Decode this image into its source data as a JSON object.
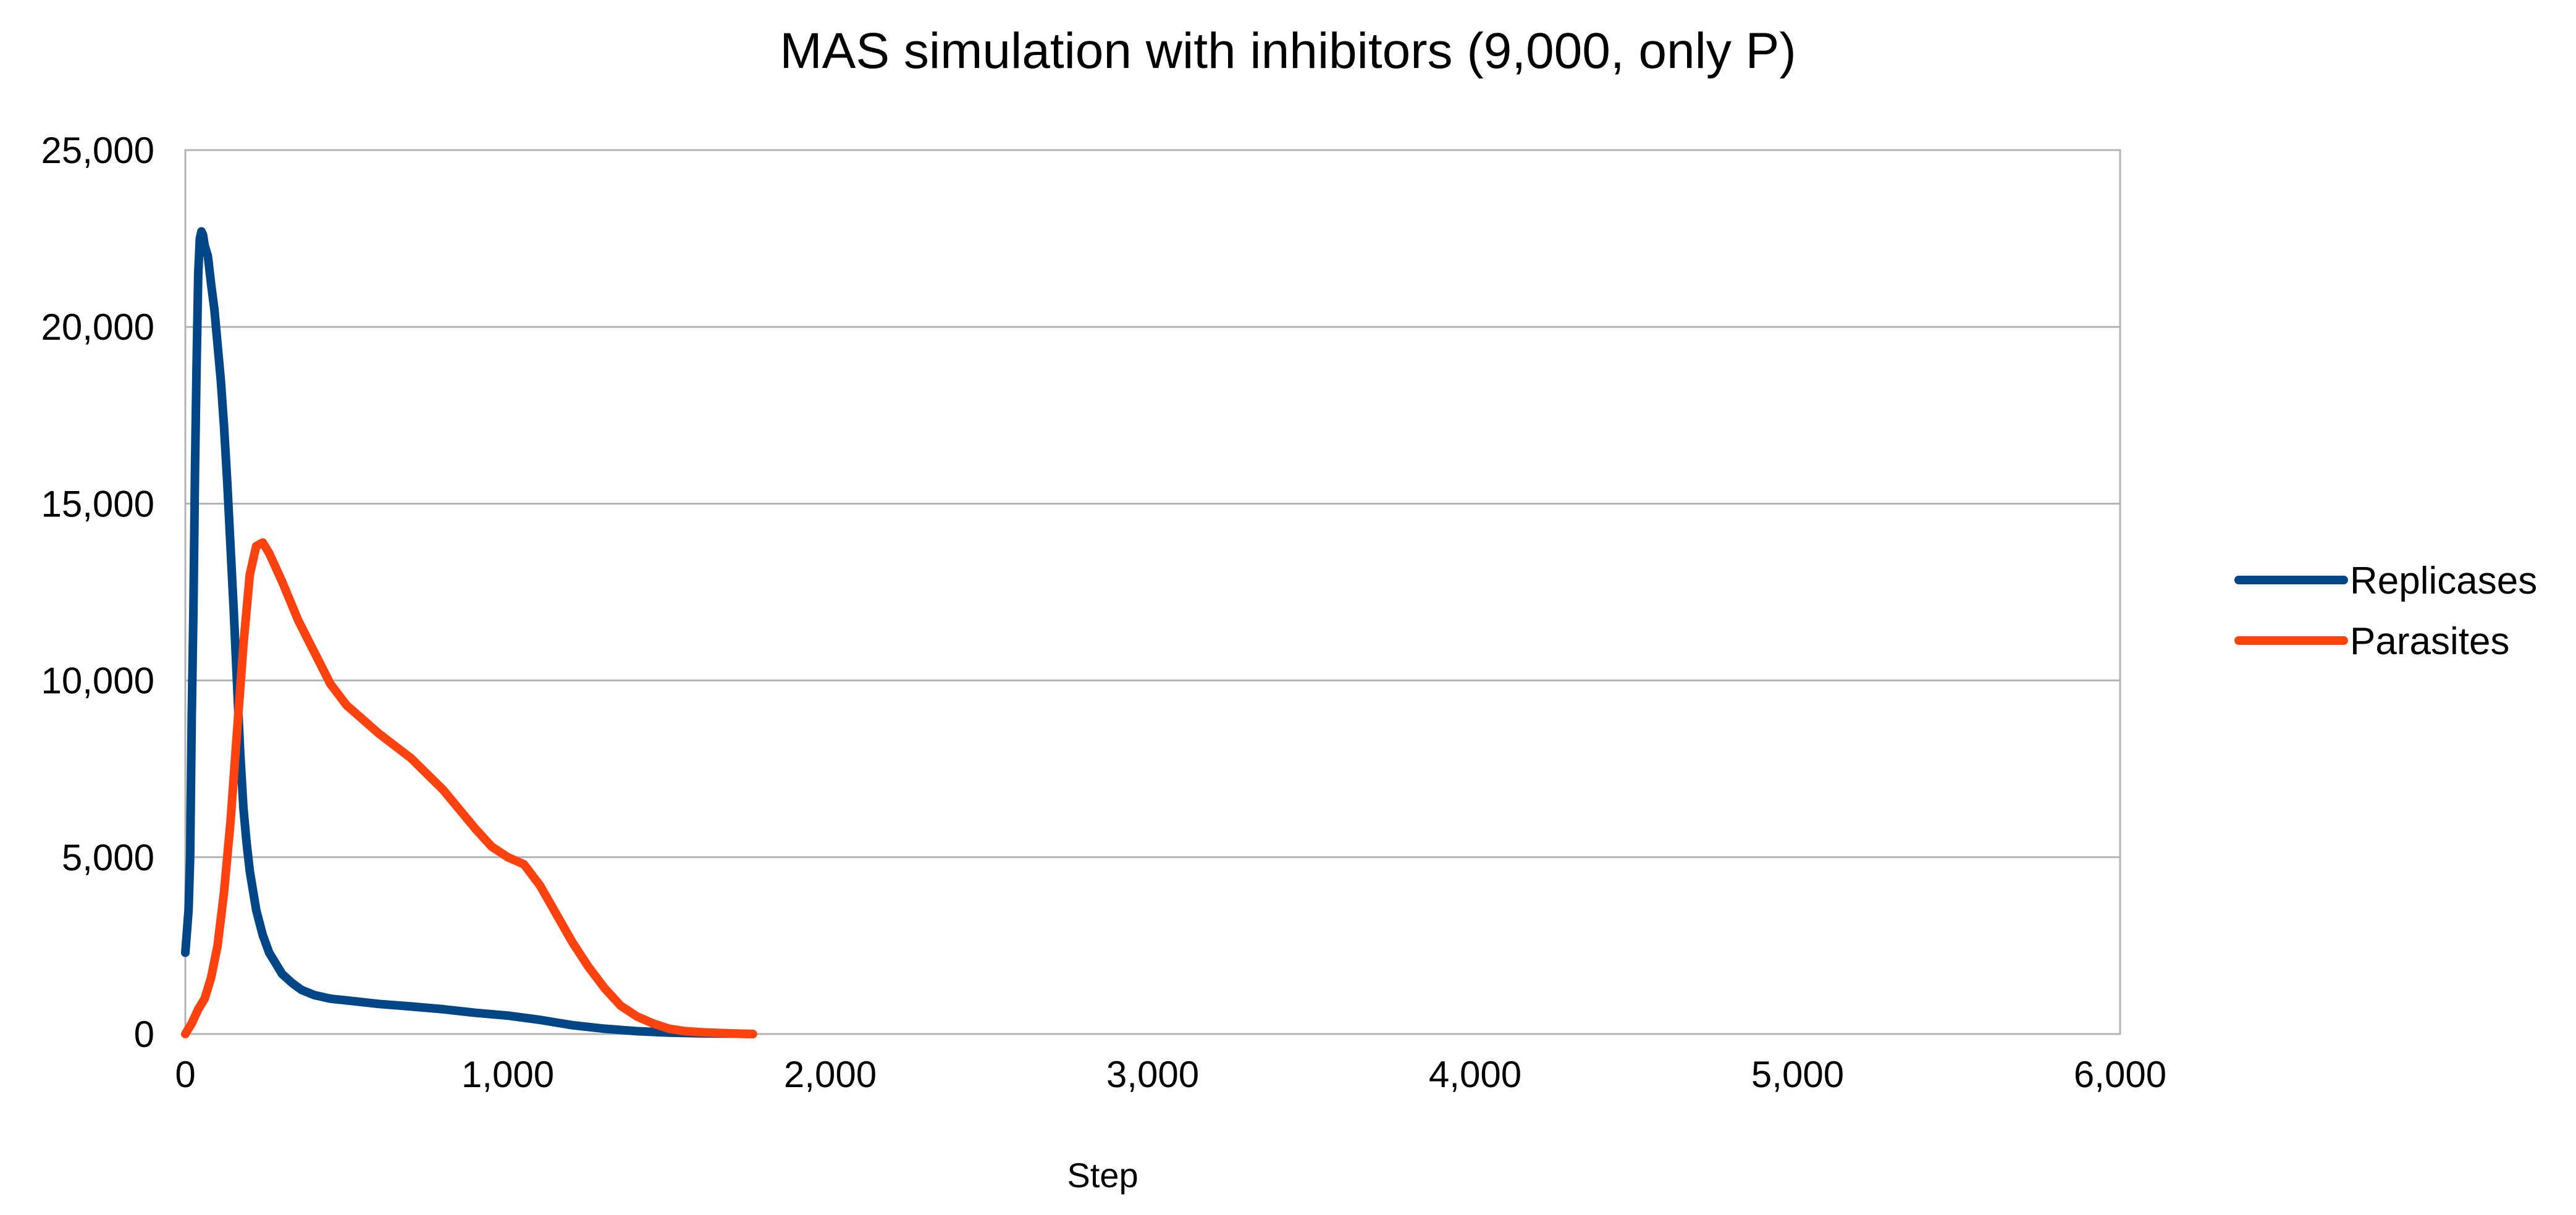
{
  "chart_data": {
    "type": "line",
    "title": "MAS simulation with inhibitors (9,000, only P)",
    "xlabel": "Step",
    "ylabel": "",
    "xlim": [
      0,
      6000
    ],
    "ylim": [
      0,
      25000
    ],
    "x_ticks": [
      0,
      1000,
      2000,
      3000,
      4000,
      5000,
      6000
    ],
    "x_tick_labels": [
      "0",
      "1,000",
      "2,000",
      "3,000",
      "4,000",
      "5,000",
      "6,000"
    ],
    "y_ticks": [
      0,
      5000,
      10000,
      15000,
      20000,
      25000
    ],
    "y_tick_labels": [
      "0",
      "5,000",
      "10,000",
      "15,000",
      "20,000",
      "25,000"
    ],
    "grid": "horizontal",
    "legend_position": "right",
    "series": [
      {
        "name": "Replicases",
        "color": "#004586",
        "x": [
          0,
          5,
          10,
          15,
          20,
          25,
          30,
          35,
          40,
          45,
          50,
          55,
          60,
          70,
          80,
          90,
          100,
          110,
          120,
          130,
          140,
          150,
          160,
          170,
          180,
          190,
          200,
          220,
          240,
          260,
          280,
          300,
          330,
          360,
          400,
          450,
          500,
          600,
          700,
          800,
          900,
          1000,
          1100,
          1200,
          1300,
          1400,
          1500,
          1600,
          1700,
          1760
        ],
        "values": [
          2300,
          2900,
          3500,
          5000,
          9000,
          12000,
          16000,
          19000,
          21500,
          22500,
          22700,
          22600,
          22300,
          22000,
          21200,
          20500,
          19500,
          18500,
          17200,
          15600,
          13800,
          12000,
          10000,
          8000,
          6400,
          5400,
          4600,
          3500,
          2800,
          2300,
          2000,
          1700,
          1450,
          1250,
          1100,
          1000,
          950,
          850,
          780,
          700,
          600,
          520,
          400,
          250,
          150,
          80,
          40,
          20,
          10,
          0
        ]
      },
      {
        "name": "Parasites",
        "color": "#ff420e",
        "x": [
          0,
          20,
          40,
          60,
          80,
          100,
          120,
          140,
          160,
          180,
          200,
          220,
          240,
          260,
          280,
          300,
          350,
          400,
          450,
          500,
          600,
          700,
          800,
          900,
          950,
          1000,
          1050,
          1100,
          1150,
          1200,
          1250,
          1300,
          1350,
          1400,
          1450,
          1500,
          1550,
          1600,
          1650,
          1700,
          1760
        ],
        "values": [
          0,
          300,
          700,
          1000,
          1600,
          2500,
          4000,
          6000,
          8500,
          11000,
          13000,
          13800,
          13900,
          13600,
          13200,
          12800,
          11700,
          10800,
          9900,
          9300,
          8500,
          7800,
          6900,
          5800,
          5300,
          5000,
          4800,
          4200,
          3400,
          2600,
          1900,
          1300,
          800,
          500,
          300,
          150,
          80,
          50,
          30,
          15,
          0
        ]
      }
    ]
  }
}
